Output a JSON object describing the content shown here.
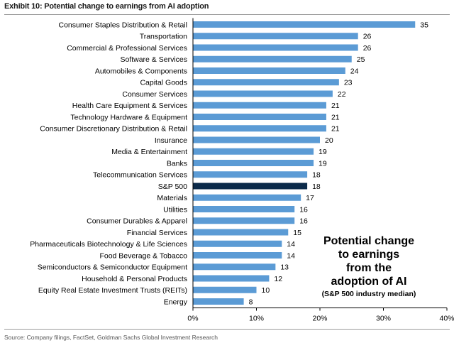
{
  "exhibit_title": "Exhibit 10: Potential change to earnings from AI adoption",
  "source": "Source: Company filings, FactSet, Goldman Sachs Global Investment Research",
  "annotation": {
    "main": "Potential change\nto earnings\nfrom the\nadoption of AI",
    "sub": "(S&P 500 industry median)"
  },
  "colors": {
    "bar": "#5b9bd5",
    "highlight": "#0b2a4a",
    "axis": "#000000"
  },
  "chart_data": {
    "type": "bar",
    "orientation": "horizontal",
    "title": "Potential change to earnings from AI adoption",
    "categories": [
      "Consumer Staples Distribution & Retail",
      "Transportation",
      "Commercial & Professional Services",
      "Software & Services",
      "Automobiles & Components",
      "Capital Goods",
      "Consumer Services",
      "Health Care Equipment & Services",
      "Technology Hardware & Equipment",
      "Consumer Discretionary Distribution & Retail",
      "Insurance",
      "Media & Entertainment",
      "Banks",
      "Telecommunication Services",
      "S&P 500",
      "Materials",
      "Utilities",
      "Consumer Durables & Apparel",
      "Financial Services",
      "Pharmaceuticals Biotechnology & Life Sciences",
      "Food Beverage & Tobacco",
      "Semiconductors & Semiconductor Equipment",
      "Household & Personal Products",
      "Equity Real Estate Investment Trusts (REITs)",
      "Energy"
    ],
    "values": [
      35,
      26,
      26,
      25,
      24,
      23,
      22,
      21,
      21,
      21,
      20,
      19,
      19,
      18,
      18,
      17,
      16,
      16,
      15,
      14,
      14,
      13,
      12,
      10,
      8
    ],
    "highlight_category": "S&P 500",
    "xlim": [
      0,
      40
    ],
    "xticks": [
      0,
      10,
      20,
      30,
      40
    ],
    "xtick_labels": [
      "0%",
      "10%",
      "20%",
      "30%",
      "40%"
    ],
    "xlabel": "",
    "ylabel": ""
  }
}
